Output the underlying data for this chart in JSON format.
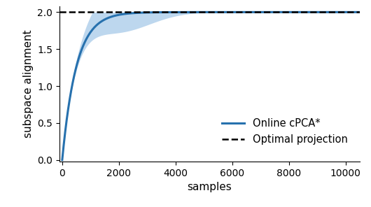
{
  "title": "",
  "xlabel": "samples",
  "ylabel": "subspace alignment",
  "xlim": [
    -100,
    10500
  ],
  "ylim": [
    -0.02,
    2.08
  ],
  "optimal_value": 2.0,
  "line_color": "#2771ae",
  "fill_color": "#5b9bd5",
  "fill_alpha": 0.4,
  "optimal_color": "#000000",
  "legend_labels": [
    "Online cPCA*",
    "Optimal projection"
  ],
  "yticks": [
    0.0,
    0.5,
    1.0,
    1.5,
    2.0
  ],
  "xticks": [
    0,
    2000,
    4000,
    6000,
    8000,
    10000
  ],
  "figsize": [
    5.3,
    2.96
  ],
  "dpi": 100
}
